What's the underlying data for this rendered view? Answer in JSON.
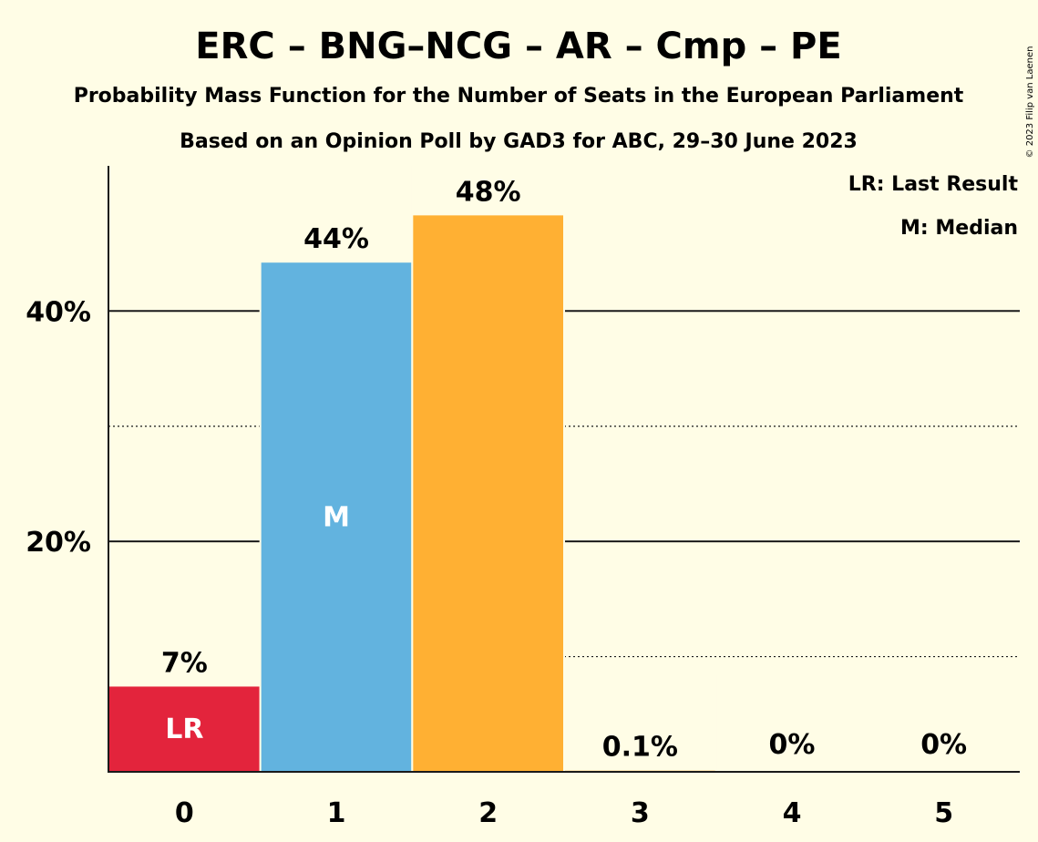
{
  "chart_data": {
    "type": "bar",
    "title": "ERC – BNG–NCG – AR – Cmp – PE",
    "subtitle": "Probability Mass Function for the Number of Seats in the European Parliament",
    "subtitle2": "Based on an Opinion Poll by GAD3 for ABC, 29–30 June 2023",
    "copyright": "© 2023 Filip van Laenen",
    "categories": [
      "0",
      "1",
      "2",
      "3",
      "4",
      "5"
    ],
    "values": [
      7.4,
      44.2,
      48.3,
      0.1,
      0,
      0
    ],
    "value_labels": [
      "7%",
      "44%",
      "48%",
      "0.1%",
      "0%",
      "0%"
    ],
    "bar_colors": [
      "#e3243c",
      "#62b3df",
      "#ffb033",
      "#ffb033",
      "#ffb033",
      "#ffb033"
    ],
    "in_bar_labels": [
      "LR",
      "M",
      "",
      "",
      "",
      ""
    ],
    "y_ticks": [
      20,
      40
    ],
    "y_tick_labels": [
      "20%",
      "40%"
    ],
    "y_minor_ticks": [
      10,
      30
    ],
    "ylim": [
      0,
      52.6
    ],
    "legend": [
      "LR: Last Result",
      "M: Median"
    ],
    "legend_position": "top-right",
    "grid": true
  }
}
